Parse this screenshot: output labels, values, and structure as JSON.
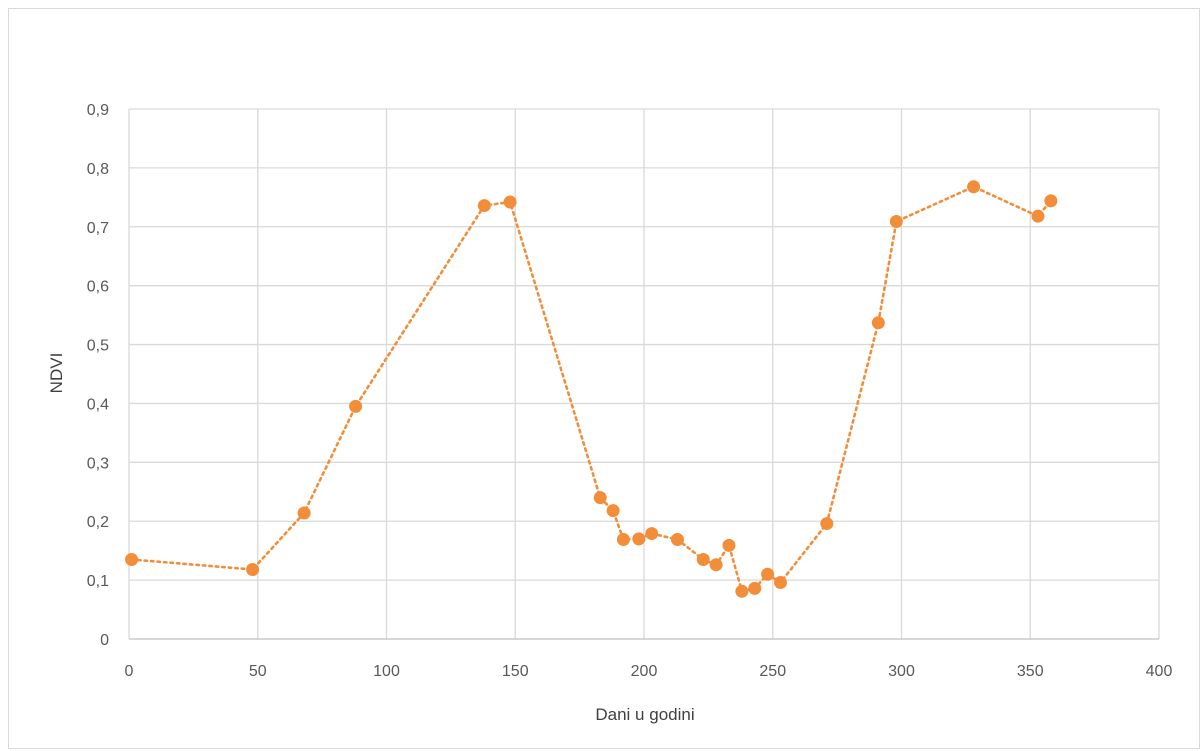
{
  "chart_data": {
    "type": "scatter",
    "title": "",
    "xlabel": "Dani u godini",
    "ylabel": "NDVI",
    "xlim": [
      0,
      400
    ],
    "ylim": [
      0,
      0.9
    ],
    "x_ticks": [
      "0",
      "50",
      "100",
      "150",
      "200",
      "250",
      "300",
      "350",
      "400"
    ],
    "y_ticks": [
      "0",
      "0,1",
      "0,2",
      "0,3",
      "0,4",
      "0,5",
      "0,6",
      "0,7",
      "0,8",
      "0,9"
    ],
    "grid": true,
    "legend": "none",
    "line_style": "dotted",
    "color": "#f28e3a",
    "points": [
      {
        "x": 1,
        "y": 0.135
      },
      {
        "x": 48,
        "y": 0.118
      },
      {
        "x": 68,
        "y": 0.214
      },
      {
        "x": 88,
        "y": 0.395
      },
      {
        "x": 138,
        "y": 0.736
      },
      {
        "x": 148,
        "y": 0.742
      },
      {
        "x": 183,
        "y": 0.24
      },
      {
        "x": 188,
        "y": 0.218
      },
      {
        "x": 192,
        "y": 0.169
      },
      {
        "x": 198,
        "y": 0.17
      },
      {
        "x": 203,
        "y": 0.179
      },
      {
        "x": 213,
        "y": 0.169
      },
      {
        "x": 223,
        "y": 0.135
      },
      {
        "x": 228,
        "y": 0.126
      },
      {
        "x": 233,
        "y": 0.159
      },
      {
        "x": 238,
        "y": 0.081
      },
      {
        "x": 243,
        "y": 0.086
      },
      {
        "x": 248,
        "y": 0.11
      },
      {
        "x": 253,
        "y": 0.096
      },
      {
        "x": 271,
        "y": 0.196
      },
      {
        "x": 291,
        "y": 0.537
      },
      {
        "x": 298,
        "y": 0.709
      },
      {
        "x": 328,
        "y": 0.768
      },
      {
        "x": 353,
        "y": 0.718
      },
      {
        "x": 358,
        "y": 0.744
      }
    ]
  }
}
